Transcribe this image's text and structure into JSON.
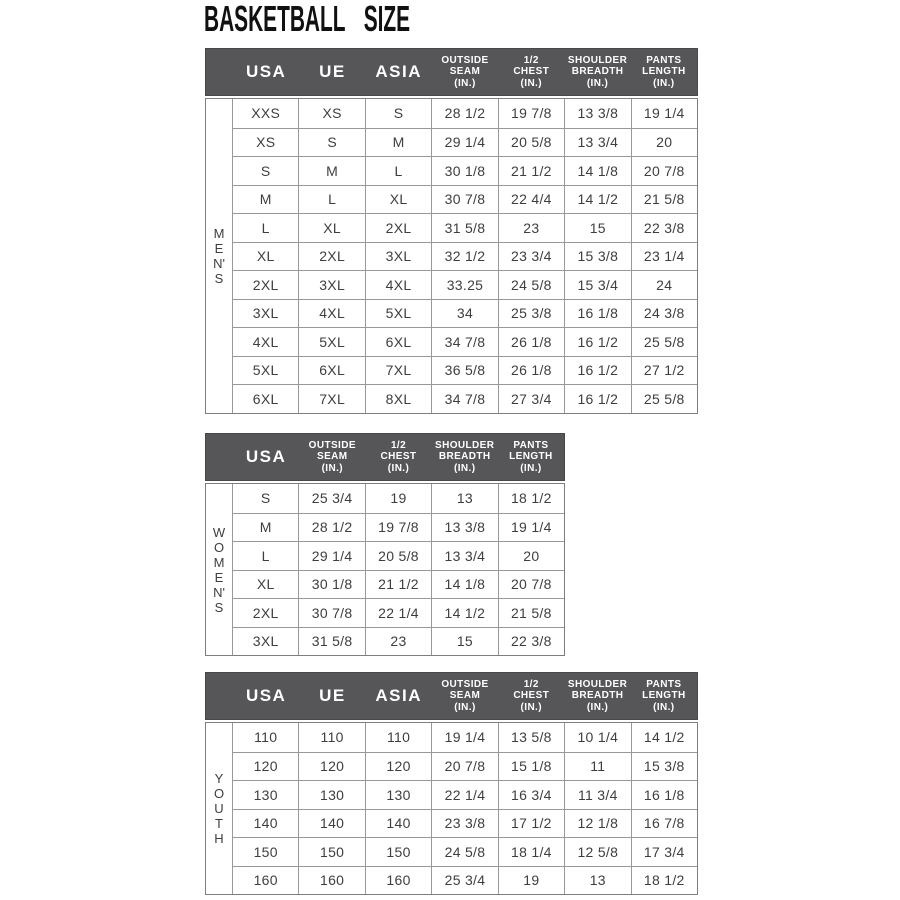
{
  "title": "BASKETBALL SIZE",
  "colors": {
    "header_bg": "#565659",
    "header_text": "#ffffff",
    "border": "#98989a",
    "cell_text": "#3e3e40",
    "title_text": "#111111",
    "page_bg": "#ffffff"
  },
  "tables": [
    {
      "group": "MEN'S",
      "columns": [
        "USA",
        "UE",
        "ASIA",
        "OUTSIDE\nSEAM\n(IN.)",
        "1/2\nCHEST\n(IN.)",
        "SHOULDER\nBREADTH\n(IN.)",
        "PANTS\nLENGTH\n(IN.)"
      ],
      "rows": [
        [
          "XXS",
          "XS",
          "S",
          "28 1/2",
          "19 7/8",
          "13 3/8",
          "19 1/4"
        ],
        [
          "XS",
          "S",
          "M",
          "29 1/4",
          "20 5/8",
          "13 3/4",
          "20"
        ],
        [
          "S",
          "M",
          "L",
          "30 1/8",
          "21 1/2",
          "14 1/8",
          "20 7/8"
        ],
        [
          "M",
          "L",
          "XL",
          "30 7/8",
          "22 4/4",
          "14 1/2",
          "21 5/8"
        ],
        [
          "L",
          "XL",
          "2XL",
          "31 5/8",
          "23",
          "15",
          "22 3/8"
        ],
        [
          "XL",
          "2XL",
          "3XL",
          "32 1/2",
          "23 3/4",
          "15 3/8",
          "23 1/4"
        ],
        [
          "2XL",
          "3XL",
          "4XL",
          "33.25",
          "24 5/8",
          "15 3/4",
          "24"
        ],
        [
          "3XL",
          "4XL",
          "5XL",
          "34",
          "25 3/8",
          "16 1/8",
          "24 3/8"
        ],
        [
          "4XL",
          "5XL",
          "6XL",
          "34 7/8",
          "26 1/8",
          "16 1/2",
          "25 5/8"
        ],
        [
          "5XL",
          "6XL",
          "7XL",
          "36 5/8",
          "26 1/8",
          "16 1/2",
          "27 1/2"
        ],
        [
          "6XL",
          "7XL",
          "8XL",
          "34 7/8",
          "27 3/4",
          "16 1/2",
          "25 5/8"
        ]
      ]
    },
    {
      "group": "WOMEN'S",
      "columns": [
        "USA",
        "OUTSIDE\nSEAM\n(IN.)",
        "1/2\nCHEST\n(IN.)",
        "SHOULDER\nBREADTH\n(IN.)",
        "PANTS\nLENGTH\n(IN.)"
      ],
      "rows": [
        [
          "S",
          "25 3/4",
          "19",
          "13",
          "18 1/2"
        ],
        [
          "M",
          "28 1/2",
          "19 7/8",
          "13 3/8",
          "19 1/4"
        ],
        [
          "L",
          "29 1/4",
          "20 5/8",
          "13 3/4",
          "20"
        ],
        [
          "XL",
          "30 1/8",
          "21 1/2",
          "14 1/8",
          "20 7/8"
        ],
        [
          "2XL",
          "30 7/8",
          "22 1/4",
          "14 1/2",
          "21 5/8"
        ],
        [
          "3XL",
          "31 5/8",
          "23",
          "15",
          "22 3/8"
        ]
      ]
    },
    {
      "group": "YOUTH",
      "columns": [
        "USA",
        "UE",
        "ASIA",
        "OUTSIDE\nSEAM\n(IN.)",
        "1/2\nCHEST\n(IN.)",
        "SHOULDER\nBREADTH\n(IN.)",
        "PANTS\nLENGTH\n(IN.)"
      ],
      "rows": [
        [
          "110",
          "110",
          "110",
          "19 1/4",
          "13 5/8",
          "10 1/4",
          "14 1/2"
        ],
        [
          "120",
          "120",
          "120",
          "20 7/8",
          "15 1/8",
          "11",
          "15 3/8"
        ],
        [
          "130",
          "130",
          "130",
          "22 1/4",
          "16 3/4",
          "11 3/4",
          "16 1/8"
        ],
        [
          "140",
          "140",
          "140",
          "23 3/8",
          "17 1/2",
          "12 1/8",
          "16 7/8"
        ],
        [
          "150",
          "150",
          "150",
          "24 5/8",
          "18 1/4",
          "12 5/8",
          "17 3/4"
        ],
        [
          "160",
          "160",
          "160",
          "25 3/4",
          "19",
          "13",
          "18 1/2"
        ]
      ]
    }
  ]
}
